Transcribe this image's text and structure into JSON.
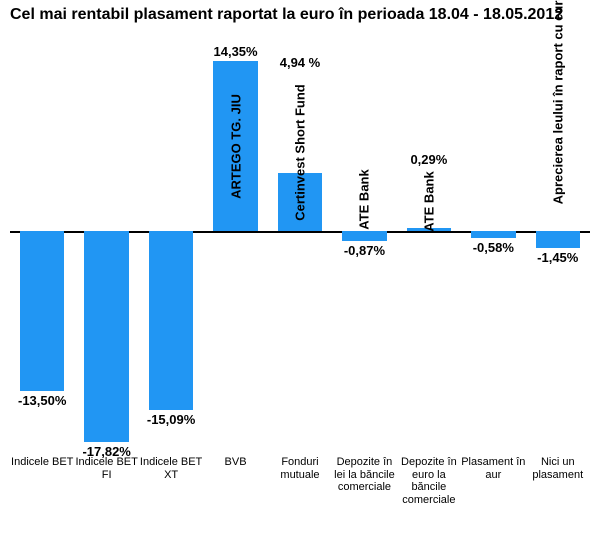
{
  "title": "Cel mai rentabil plasament raportat la euro în perioada 18.04 - 18.05.2012",
  "chart": {
    "type": "bar",
    "bar_color": "#2196f3",
    "background_color": "#ffffff",
    "axis_color": "#000000",
    "value_font_size": 13,
    "value_font_weight": "bold",
    "category_font_size": 11,
    "inner_label_font_size": 13,
    "y_max": 17,
    "y_min": -18.5,
    "bars": [
      {
        "category": "Indicele BET",
        "value": -13.5,
        "value_label": "-13,50%",
        "inner_label": ""
      },
      {
        "category": "Indicele BET FI",
        "value": -17.82,
        "value_label": "-17,82%",
        "inner_label": ""
      },
      {
        "category": "Indicele BET XT",
        "value": -15.09,
        "value_label": "-15,09%",
        "inner_label": ""
      },
      {
        "category": "BVB",
        "value": 14.35,
        "value_label": "14,35%",
        "inner_label": "ARTEGO TG. JIU"
      },
      {
        "category": "Fonduri mutuale",
        "value": 4.94,
        "value_label": "4,94 %",
        "inner_label": "Certinvest Short Fund"
      },
      {
        "category": "Depozite în lei la băncile comerciale",
        "value": -0.87,
        "value_label": "-0,87%",
        "inner_label": "ATE Bank"
      },
      {
        "category": "Depozite în euro la băncile comerciale",
        "value": 0.29,
        "value_label": "0,29%",
        "inner_label": "ATE Bank"
      },
      {
        "category": "Plasament în aur",
        "value": -0.58,
        "value_label": "-0,58%",
        "inner_label": ""
      },
      {
        "category": "Nici un plasament",
        "value": -1.45,
        "value_label": "-1,45%",
        "inner_label": "Aprecierea leului în raport cu euro"
      }
    ]
  }
}
